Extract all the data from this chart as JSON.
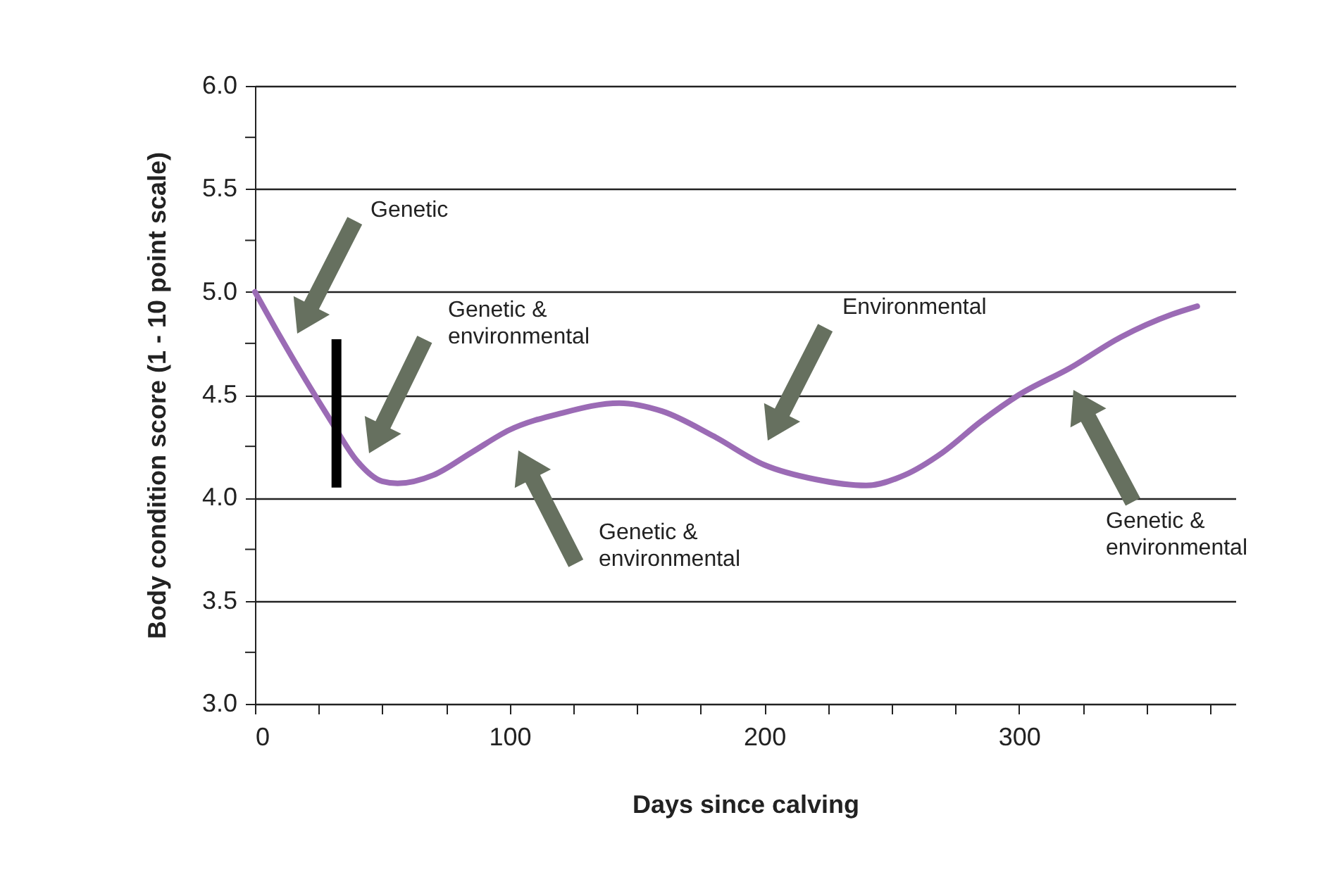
{
  "chart_data": {
    "type": "line",
    "xlabel": "Days since calving",
    "ylabel": "Body condition score (1 - 10 point scale)",
    "xlim": [
      0,
      385
    ],
    "ylim": [
      3.0,
      6.0
    ],
    "xticks": [
      0,
      {
        "value": 25,
        "label": null
      },
      {
        "value": 50,
        "label": null
      },
      {
        "value": 75,
        "label": null
      },
      100,
      {
        "value": 125,
        "label": null
      },
      {
        "value": 150,
        "label": null
      },
      {
        "value": 175,
        "label": null
      },
      200,
      {
        "value": 225,
        "label": null
      },
      {
        "value": 250,
        "label": null
      },
      {
        "value": 275,
        "label": null
      },
      300,
      {
        "value": 325,
        "label": null
      },
      {
        "value": 350,
        "label": null
      },
      {
        "value": 375,
        "label": null
      }
    ],
    "yticks": [
      {
        "value": 3.0,
        "label": "3.0"
      },
      {
        "value": 3.25,
        "label": null
      },
      {
        "value": 3.5,
        "label": "3.5"
      },
      {
        "value": 3.75,
        "label": null
      },
      {
        "value": 4.0,
        "label": "4.0"
      },
      {
        "value": 4.25,
        "label": null
      },
      {
        "value": 4.5,
        "label": "4.5"
      },
      {
        "value": 4.75,
        "label": null
      },
      {
        "value": 5.0,
        "label": "5.0"
      },
      {
        "value": 5.25,
        "label": null
      },
      {
        "value": 5.5,
        "label": "5.5"
      },
      {
        "value": 5.75,
        "label": null
      },
      {
        "value": 6.0,
        "label": "6.0"
      }
    ],
    "grid": "y",
    "line_style": "solid",
    "marker": "none",
    "series": [
      {
        "color": "#9b6bb5",
        "x": [
          0,
          10,
          20,
          30,
          40,
          50,
          56,
          70,
          85,
          100,
          120,
          143,
          160,
          180,
          200,
          220,
          240,
          255,
          270,
          285,
          300,
          320,
          340,
          360,
          370
        ],
        "values": [
          5.0,
          4.78,
          4.57,
          4.37,
          4.18,
          4.08,
          4.07,
          4.11,
          4.22,
          4.33,
          4.41,
          4.46,
          4.42,
          4.3,
          4.16,
          4.09,
          4.06,
          4.11,
          4.22,
          4.37,
          4.5,
          4.63,
          4.78,
          4.89,
          4.93
        ]
      },
      {
        "type": "line",
        "color": "#000000",
        "x": [
          32,
          32
        ],
        "values": [
          4.05,
          4.77
        ]
      }
    ],
    "annotations": [
      "Genetic",
      "Genetic & environmental",
      "Environmental",
      "Genetic & environmental",
      "Genetic & environmental"
    ]
  }
}
